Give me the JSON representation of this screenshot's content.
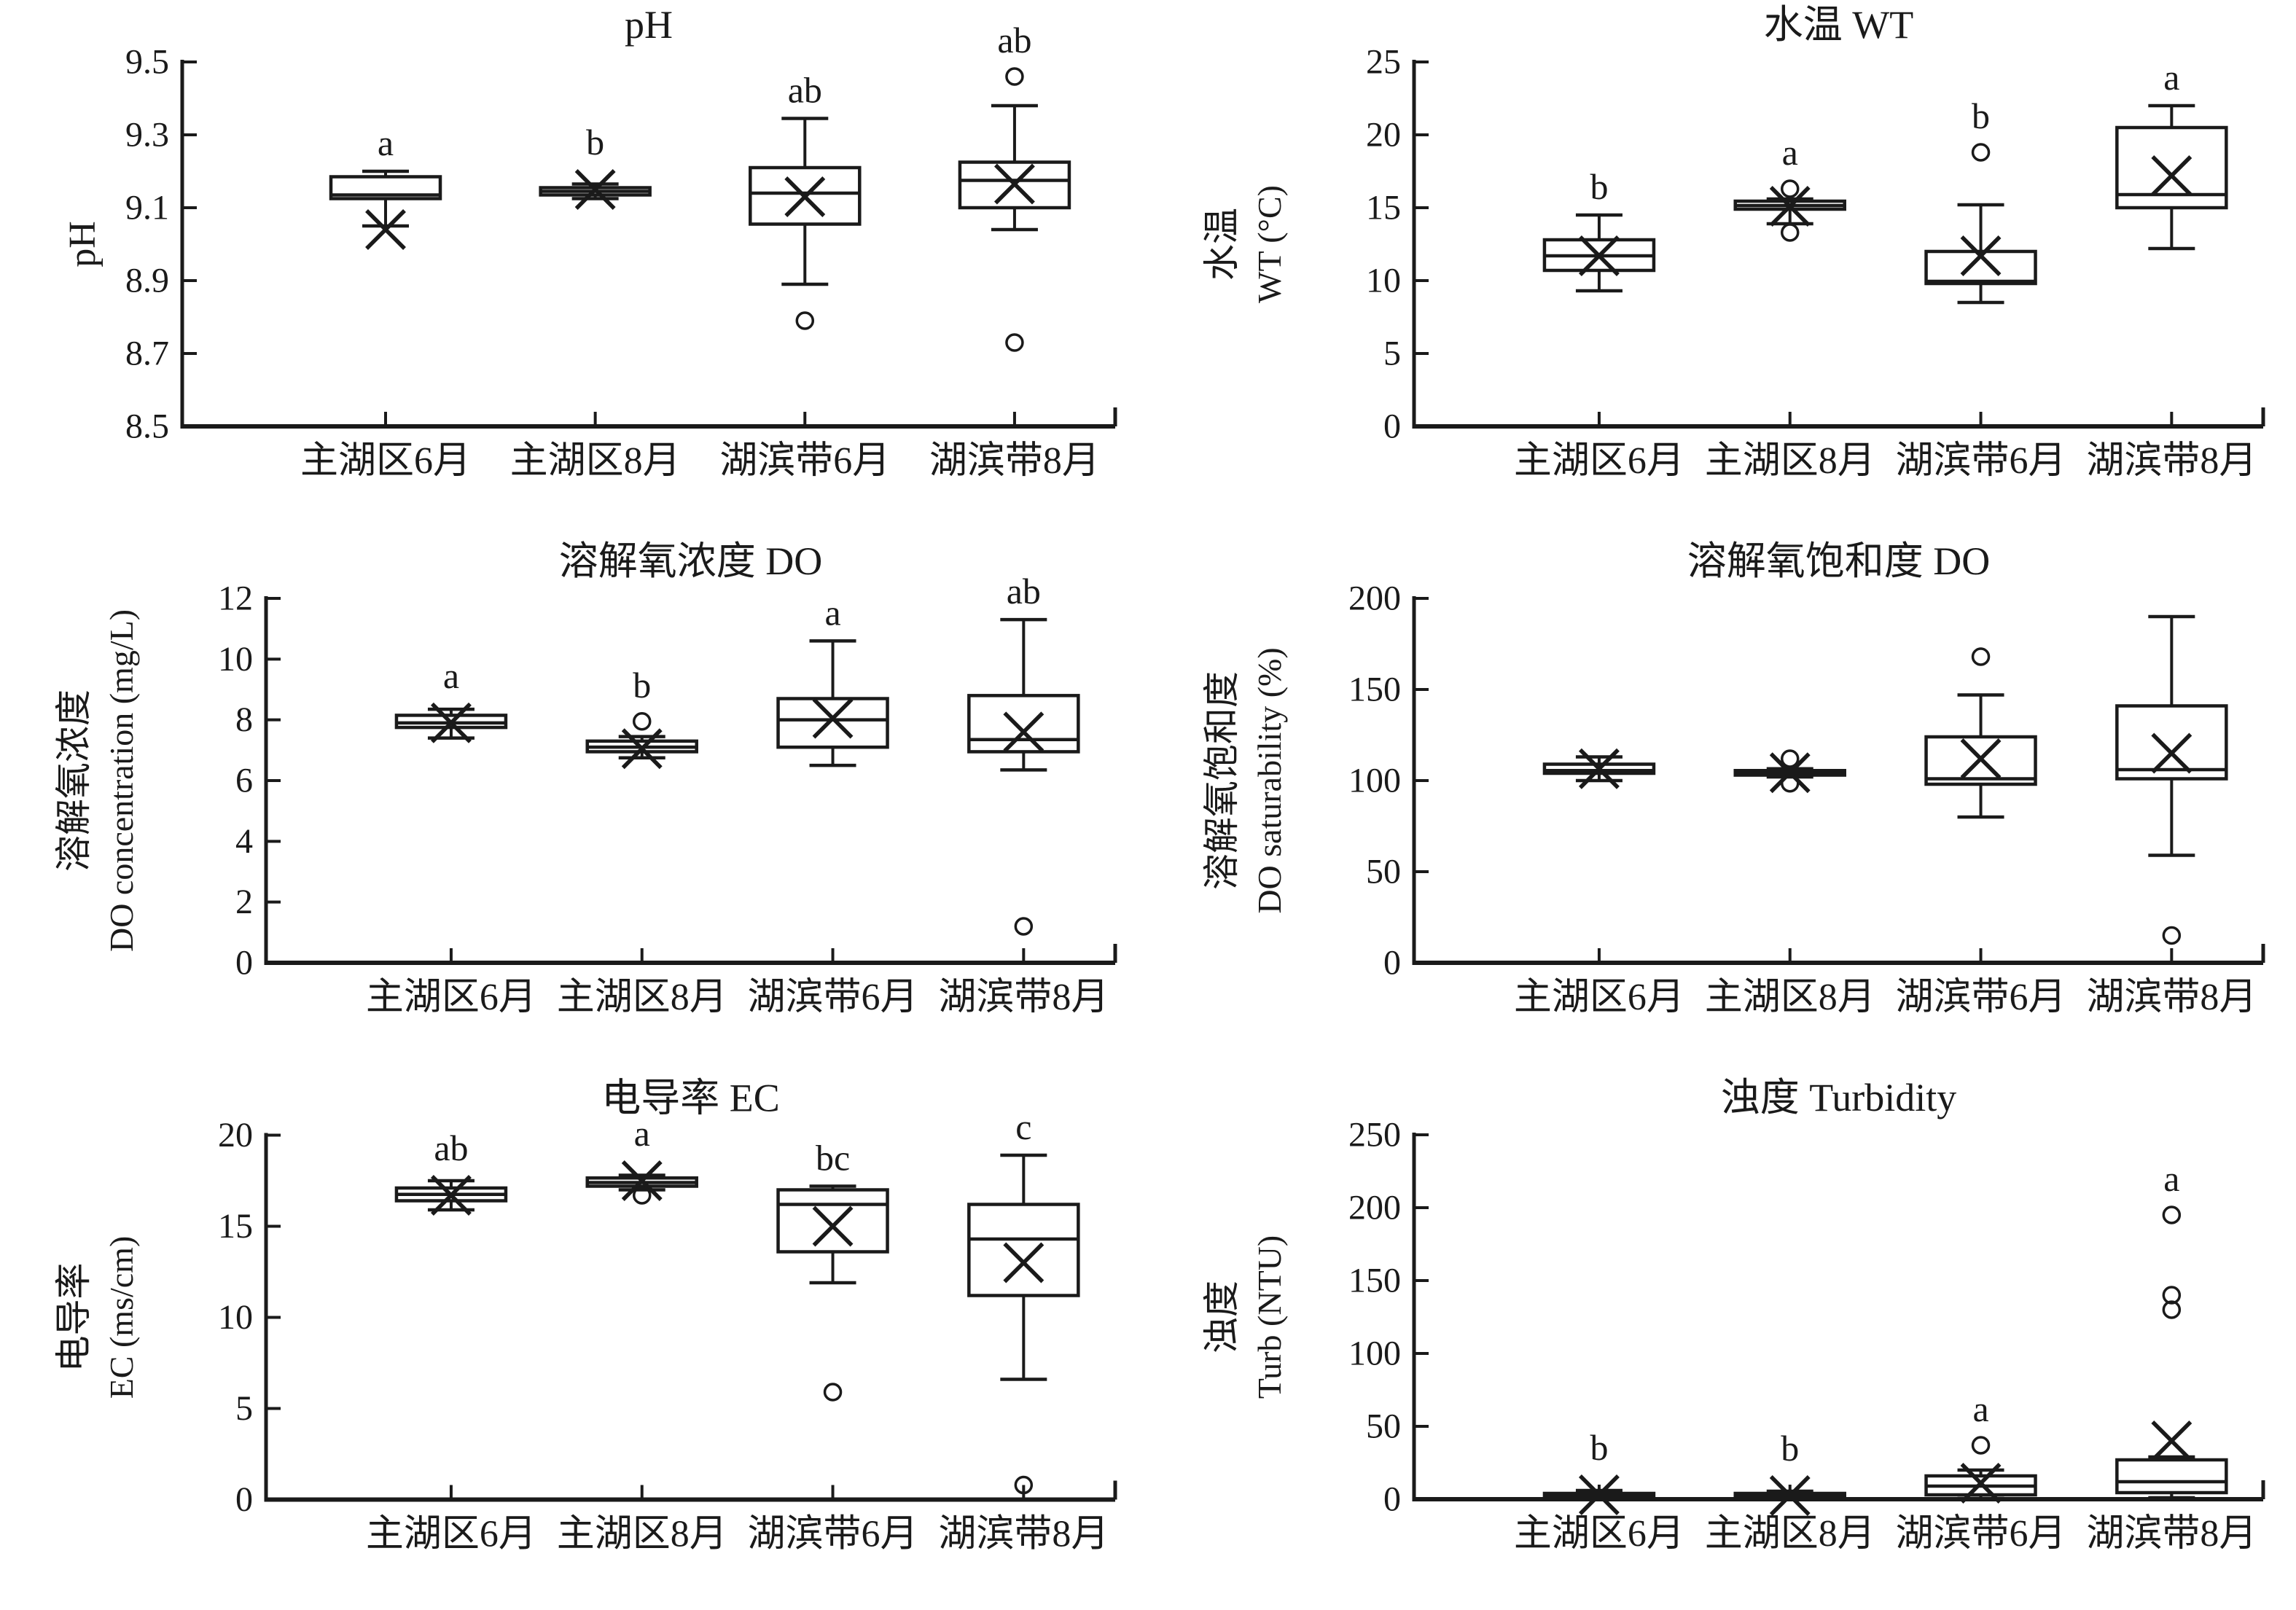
{
  "figure": {
    "background": "#ffffff",
    "ink": "#1a1a1a",
    "grid": "off",
    "legend": "none",
    "layout": "2 columns x 3 rows of box plots"
  },
  "categories": [
    "主湖区6月",
    "主湖区8月",
    "湖滨带6月",
    "湖滨带8月"
  ],
  "chart_data": [
    {
      "type": "box",
      "key": "ph",
      "title": "pH",
      "ylabel": {
        "cn": "",
        "en": "pH"
      },
      "ylim": [
        8.5,
        9.5
      ],
      "yticks": [
        "8.5",
        "8.7",
        "8.9",
        "9.1",
        "9.3",
        "9.5"
      ],
      "categories": [
        "主湖区6月",
        "主湖区8月",
        "湖滨带6月",
        "湖滨带8月"
      ],
      "boxes": [
        {
          "letter": "a",
          "q1": 9.125,
          "median": 9.135,
          "q3": 9.185,
          "mean": 9.04,
          "whisker_low": 9.05,
          "whisker_high": 9.2,
          "outliers": []
        },
        {
          "letter": "b",
          "q1": 9.135,
          "median": 9.145,
          "q3": 9.155,
          "mean": 9.15,
          "whisker_low": 9.125,
          "whisker_high": 9.165,
          "outliers": []
        },
        {
          "letter": "ab",
          "q1": 9.055,
          "median": 9.14,
          "q3": 9.21,
          "mean": 9.13,
          "whisker_low": 8.89,
          "whisker_high": 9.345,
          "outliers": [
            8.79
          ]
        },
        {
          "letter": "ab",
          "q1": 9.1,
          "median": 9.175,
          "q3": 9.225,
          "mean": 9.165,
          "whisker_low": 9.04,
          "whisker_high": 9.38,
          "outliers": [
            9.46,
            8.73
          ]
        }
      ]
    },
    {
      "type": "box",
      "key": "wt",
      "title": "水温 WT",
      "ylabel": {
        "cn": "水温",
        "en": "WT (°C)"
      },
      "ylim": [
        0,
        25
      ],
      "yticks": [
        "0",
        "5",
        "10",
        "15",
        "20",
        "25"
      ],
      "categories": [
        "主湖区6月",
        "主湖区8月",
        "湖滨带6月",
        "湖滨带8月"
      ],
      "boxes": [
        {
          "letter": "b",
          "q1": 10.7,
          "median": 11.7,
          "q3": 12.8,
          "mean": 11.7,
          "whisker_low": 9.3,
          "whisker_high": 14.5,
          "outliers": []
        },
        {
          "letter": "a",
          "q1": 14.9,
          "median": 15.15,
          "q3": 15.45,
          "mean": 15.1,
          "whisker_low": 13.9,
          "whisker_high": 15.6,
          "outliers": [
            16.3,
            13.3
          ]
        },
        {
          "letter": "b",
          "q1": 9.8,
          "median": 9.95,
          "q3": 12.0,
          "mean": 11.7,
          "whisker_low": 8.5,
          "whisker_high": 15.2,
          "outliers": [
            18.8
          ]
        },
        {
          "letter": "a",
          "q1": 15.0,
          "median": 15.9,
          "q3": 20.5,
          "mean": 17.2,
          "whisker_low": 12.2,
          "whisker_high": 22.0,
          "outliers": []
        }
      ]
    },
    {
      "type": "box",
      "key": "do-concentration",
      "title": "溶解氧浓度 DO",
      "ylabel": {
        "cn": "溶解氧浓度",
        "en": "DO concentration (mg/L)"
      },
      "ylim": [
        0,
        12
      ],
      "yticks": [
        "0",
        "2",
        "4",
        "6",
        "8",
        "10",
        "12"
      ],
      "categories": [
        "主湖区6月",
        "主湖区8月",
        "湖滨带6月",
        "湖滨带8月"
      ],
      "boxes": [
        {
          "letter": "a",
          "q1": 7.75,
          "median": 7.9,
          "q3": 8.15,
          "mean": 7.9,
          "whisker_low": 7.4,
          "whisker_high": 8.35,
          "outliers": []
        },
        {
          "letter": "b",
          "q1": 6.95,
          "median": 7.1,
          "q3": 7.3,
          "mean": 7.05,
          "whisker_low": 6.75,
          "whisker_high": 7.45,
          "outliers": [
            7.95
          ]
        },
        {
          "letter": "a",
          "q1": 7.1,
          "median": 8.0,
          "q3": 8.7,
          "mean": 8.05,
          "whisker_low": 6.5,
          "whisker_high": 10.6,
          "outliers": []
        },
        {
          "letter": "ab",
          "q1": 6.95,
          "median": 7.35,
          "q3": 8.8,
          "mean": 7.6,
          "whisker_low": 6.35,
          "whisker_high": 11.3,
          "outliers": [
            1.2
          ]
        }
      ]
    },
    {
      "type": "box",
      "key": "do-saturability",
      "title": "溶解氧饱和度 DO",
      "ylabel": {
        "cn": "溶解氧饱和度",
        "en": "DO saturability (%)"
      },
      "ylim": [
        0,
        200
      ],
      "yticks": [
        "0",
        "50",
        "100",
        "150",
        "200"
      ],
      "categories": [
        "主湖区6月",
        "主湖区8月",
        "湖滨带6月",
        "湖滨带8月"
      ],
      "boxes": [
        {
          "letter": "",
          "q1": 104,
          "median": 105.5,
          "q3": 109,
          "mean": 106.5,
          "whisker_low": 100,
          "whisker_high": 113,
          "outliers": []
        },
        {
          "letter": "",
          "q1": 103,
          "median": 104.3,
          "q3": 105.5,
          "mean": 104.3,
          "whisker_low": 102,
          "whisker_high": 106.5,
          "outliers": [
            112,
            98.5
          ]
        },
        {
          "letter": "",
          "q1": 98,
          "median": 101,
          "q3": 124,
          "mean": 112,
          "whisker_low": 80,
          "whisker_high": 147,
          "outliers": [
            168
          ]
        },
        {
          "letter": "",
          "q1": 101,
          "median": 106,
          "q3": 141,
          "mean": 115,
          "whisker_low": 59,
          "whisker_high": 190,
          "outliers": [
            15
          ]
        }
      ]
    },
    {
      "type": "box",
      "key": "ec",
      "title": "电导率 EC",
      "ylabel": {
        "cn": "电导率",
        "en": "EC (ms/cm)"
      },
      "ylim": [
        0,
        20
      ],
      "yticks": [
        "0",
        "5",
        "10",
        "15",
        "20"
      ],
      "categories": [
        "主湖区6月",
        "主湖区8月",
        "湖滨带6月",
        "湖滨带8月"
      ],
      "boxes": [
        {
          "letter": "ab",
          "q1": 16.4,
          "median": 16.75,
          "q3": 17.1,
          "mean": 16.7,
          "whisker_low": 15.9,
          "whisker_high": 17.5,
          "outliers": []
        },
        {
          "letter": "a",
          "q1": 17.2,
          "median": 17.4,
          "q3": 17.65,
          "mean": 17.5,
          "whisker_low": 17.0,
          "whisker_high": 17.8,
          "outliers": [
            16.7
          ]
        },
        {
          "letter": "bc",
          "q1": 13.6,
          "median": 16.2,
          "q3": 17.0,
          "mean": 15.0,
          "whisker_low": 11.9,
          "whisker_high": 17.2,
          "outliers": [
            5.9
          ]
        },
        {
          "letter": "c",
          "q1": 11.2,
          "median": 14.3,
          "q3": 16.2,
          "mean": 13.0,
          "whisker_low": 6.6,
          "whisker_high": 18.9,
          "outliers": [
            0.8
          ]
        }
      ]
    },
    {
      "type": "box",
      "key": "turbidity",
      "title": "浊度 Turbidity",
      "ylabel": {
        "cn": "浊度",
        "en": "Turb (NTU)"
      },
      "ylim": [
        0,
        250
      ],
      "yticks": [
        "0",
        "50",
        "100",
        "150",
        "200",
        "250"
      ],
      "categories": [
        "主湖区6月",
        "主湖区8月",
        "湖滨带6月",
        "湖滨带8月"
      ],
      "boxes": [
        {
          "letter": "b",
          "q1": 0.5,
          "median": 2,
          "q3": 4,
          "mean": 3,
          "whisker_low": 0,
          "whisker_high": 6,
          "outliers": []
        },
        {
          "letter": "b",
          "q1": 0.5,
          "median": 2,
          "q3": 4,
          "mean": 2.5,
          "whisker_low": 0,
          "whisker_high": 5.5,
          "outliers": []
        },
        {
          "letter": "a",
          "q1": 3,
          "median": 9,
          "q3": 16,
          "mean": 11,
          "whisker_low": 0.5,
          "whisker_high": 20,
          "outliers": [
            37
          ]
        },
        {
          "letter": "a",
          "q1": 4.5,
          "median": 12,
          "q3": 27,
          "mean": 40,
          "whisker_low": 1,
          "whisker_high": 29,
          "outliers": [
            130,
            140,
            195
          ]
        }
      ]
    }
  ]
}
